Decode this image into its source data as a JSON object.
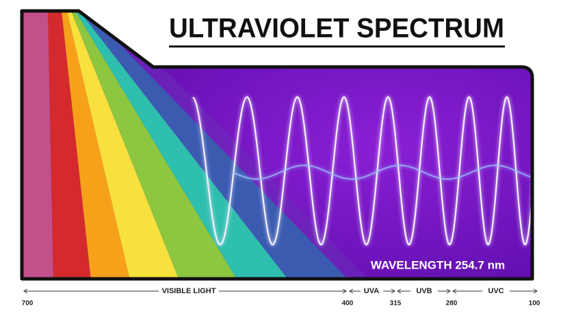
{
  "header": {
    "title": "ULTRAVIOLET SPECTRUM"
  },
  "wave_label": "WAVELENGTH 254.7 nm",
  "bands": [
    {
      "label": "VISIBLE LIGHT"
    },
    {
      "label": "UVA"
    },
    {
      "label": "UVB"
    },
    {
      "label": "UVC"
    }
  ],
  "scale": [
    700,
    400,
    315,
    280,
    100
  ]
}
